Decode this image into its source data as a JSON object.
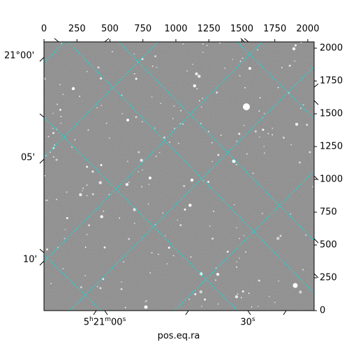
{
  "image": {
    "description_free": true,
    "x_range": [
      0,
      2048
    ],
    "y_range": [
      0,
      2048
    ]
  },
  "axes": {
    "top_ticks": [
      {
        "value": 0,
        "label": "0"
      },
      {
        "value": 250,
        "label": "250"
      },
      {
        "value": 500,
        "label": "500"
      },
      {
        "value": 750,
        "label": "750"
      },
      {
        "value": 1000,
        "label": "1000"
      },
      {
        "value": 1250,
        "label": "1250"
      },
      {
        "value": 1500,
        "label": "1500"
      },
      {
        "value": 1750,
        "label": "1750"
      },
      {
        "value": 2000,
        "label": "2000"
      }
    ],
    "right_ticks": [
      {
        "value": 0,
        "label": "0"
      },
      {
        "value": 250,
        "label": "250"
      },
      {
        "value": 500,
        "label": "500"
      },
      {
        "value": 750,
        "label": "750"
      },
      {
        "value": 1000,
        "label": "1000"
      },
      {
        "value": 1250,
        "label": "1250"
      },
      {
        "value": 1500,
        "label": "1500"
      },
      {
        "value": 1750,
        "label": "1750"
      },
      {
        "value": 2000,
        "label": "2000"
      }
    ],
    "left_labels": [
      "21°00'",
      "05'",
      "10'"
    ],
    "bottom_labels": {
      "ra1_h": "5",
      "ra1_h_unit": "h",
      "ra1_m": "21",
      "ra1_m_unit": "m",
      "ra1_s": "00",
      "ra1_s_unit": "s",
      "ra2_s": "30",
      "ra2_s_unit": "s"
    },
    "xlabel": "pos.eq.ra"
  },
  "colors": {
    "grid": "#00e5e5",
    "background": "#7a7a7a"
  }
}
